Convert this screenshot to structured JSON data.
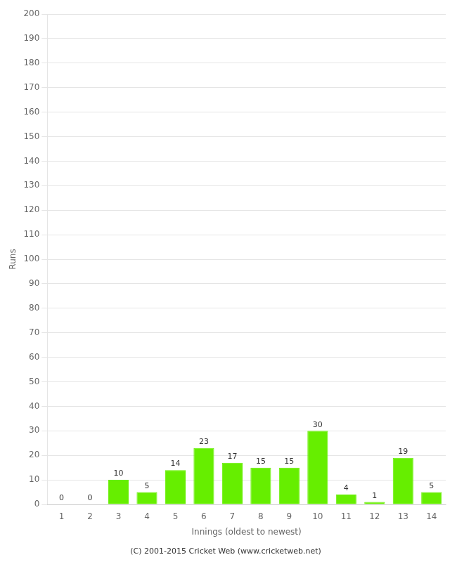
{
  "chart_data": {
    "type": "bar",
    "xlabel": "Innings (oldest to newest)",
    "ylabel": "Runs",
    "categories": [
      1,
      2,
      3,
      4,
      5,
      6,
      7,
      8,
      9,
      10,
      11,
      12,
      13,
      14
    ],
    "values": [
      0,
      0,
      10,
      5,
      14,
      23,
      17,
      15,
      15,
      30,
      4,
      1,
      19,
      5
    ],
    "color": "#66ee00",
    "ylim": [
      0,
      200
    ],
    "yticks": [
      0,
      10,
      20,
      30,
      40,
      50,
      60,
      70,
      80,
      90,
      100,
      110,
      120,
      130,
      140,
      150,
      160,
      170,
      180,
      190,
      200
    ],
    "grid": true,
    "data_labels": true,
    "annotations": [
      "(C) 2001-2015 Cricket Web (www.cricketweb.net)"
    ]
  }
}
